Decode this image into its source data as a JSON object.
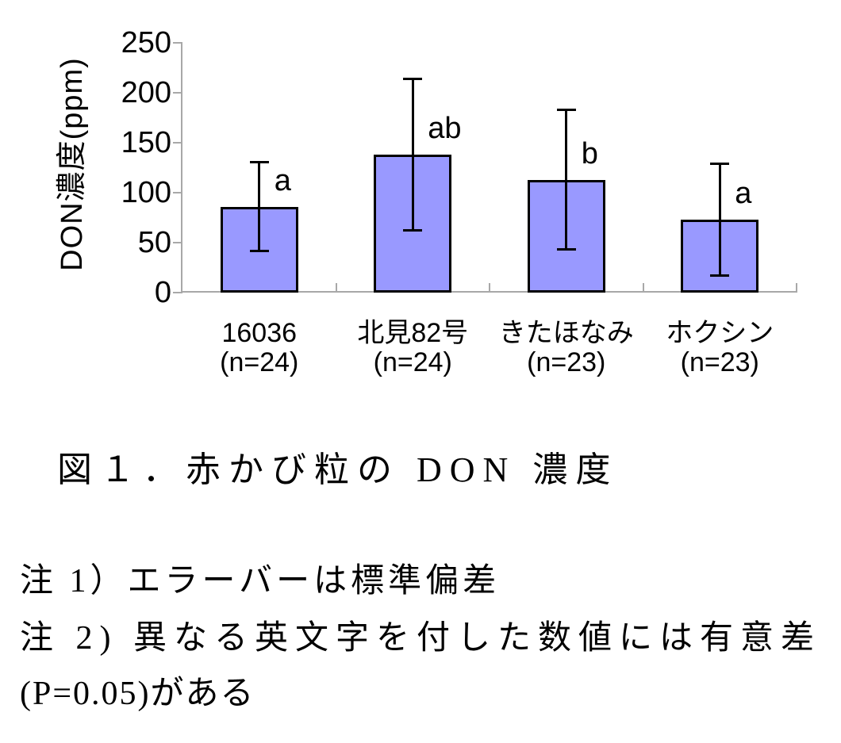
{
  "figure": {
    "caption": "図１．赤かび粒の DON 濃度",
    "notes": [
      "注 1）エラーバーは標準偏差",
      "注 2) 異なる英文字を付した数値には有意差",
      "(P=0.05)がある"
    ]
  },
  "chart_data": {
    "type": "bar",
    "title": "",
    "xlabel": "",
    "ylabel": "DON濃度(ppm)",
    "ylim": [
      0,
      250
    ],
    "yticks": [
      0,
      50,
      100,
      150,
      200,
      250
    ],
    "grid": false,
    "legend": false,
    "error_bars": "standard deviation",
    "categories": [
      "16036",
      "北見82号",
      "きたほなみ",
      "ホクシン"
    ],
    "n_labels": [
      "(n=24)",
      "(n=24)",
      "(n=23)",
      "(n=23)"
    ],
    "values": [
      86,
      138,
      113,
      73
    ],
    "sd": [
      45,
      76,
      70,
      56
    ],
    "sig_letters": [
      "a",
      "ab",
      "b",
      "a"
    ],
    "bar_color": "#9999FF",
    "bar_border_color": "#000000",
    "axis_color": "#A8A8A8"
  }
}
